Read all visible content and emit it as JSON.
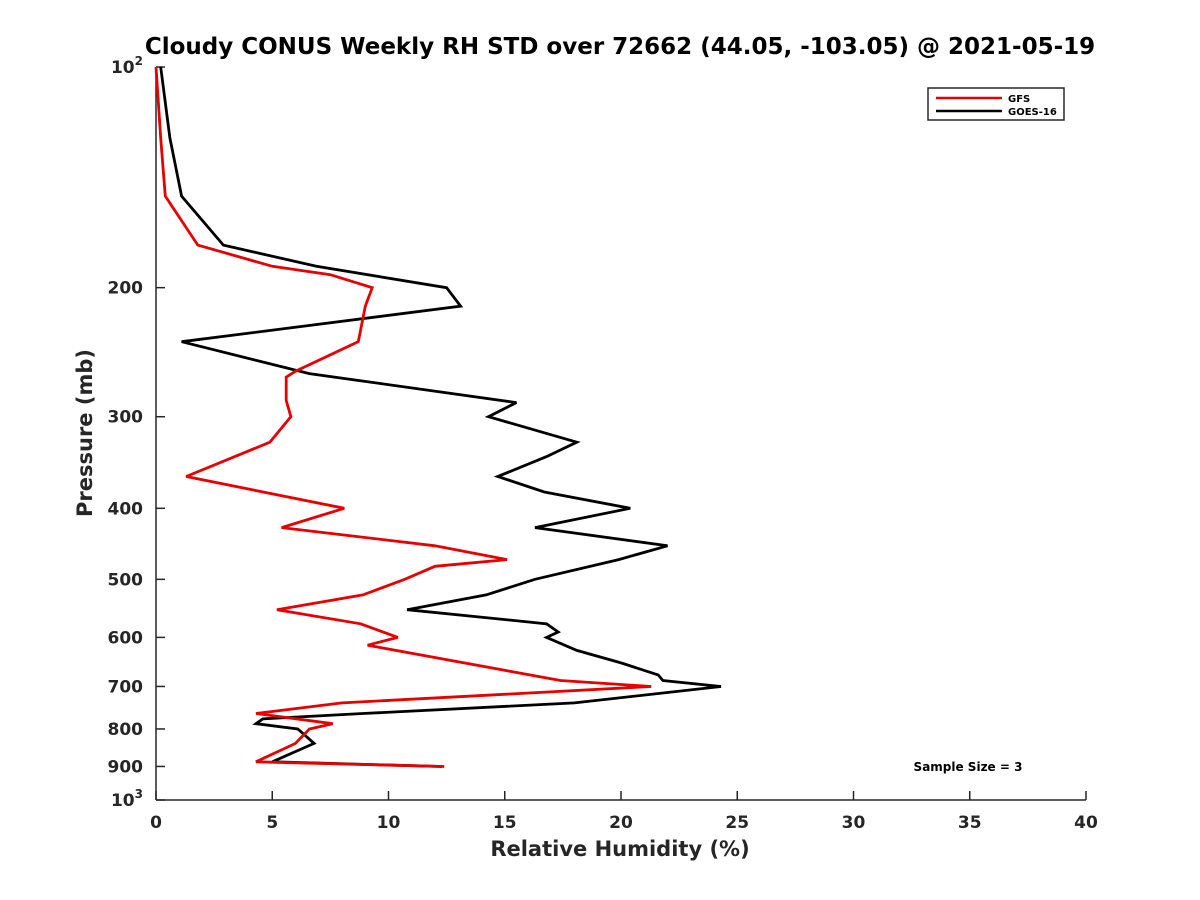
{
  "chart_data": {
    "type": "line",
    "title": "Cloudy CONUS Weekly RH STD over 72662 (44.05, -103.05) @ 2021-05-19",
    "xlabel": "Relative Humidity (%)",
    "ylabel": "Pressure (mb)",
    "xlim": [
      0,
      40
    ],
    "ylim": [
      100,
      1000
    ],
    "yscale": "log",
    "y_reversed": true,
    "x_ticks": [
      0,
      5,
      10,
      15,
      20,
      25,
      30,
      35,
      40
    ],
    "x_tick_labels": [
      "0",
      "5",
      "10",
      "15",
      "20",
      "25",
      "30",
      "35",
      "40"
    ],
    "y_ticks": [
      100,
      200,
      300,
      400,
      500,
      600,
      700,
      800,
      900,
      1000
    ],
    "y_tick_labels": [
      {
        "base": "10",
        "exp": "2"
      },
      {
        "base": "200",
        "exp": ""
      },
      {
        "base": "300",
        "exp": ""
      },
      {
        "base": "400",
        "exp": ""
      },
      {
        "base": "500",
        "exp": ""
      },
      {
        "base": "600",
        "exp": ""
      },
      {
        "base": "700",
        "exp": ""
      },
      {
        "base": "800",
        "exp": ""
      },
      {
        "base": "900",
        "exp": ""
      },
      {
        "base": "10",
        "exp": "3"
      }
    ],
    "grid": false,
    "legend_position": "top-right",
    "annotation": "Sample Size = 3",
    "series": [
      {
        "name": "GFS",
        "color": "#e60000",
        "points": [
          [
            0,
            100
          ],
          [
            0.2,
            125
          ],
          [
            0.4,
            150
          ],
          [
            1.8,
            175
          ],
          [
            5.0,
            187
          ],
          [
            7.5,
            192
          ],
          [
            9.3,
            200
          ],
          [
            9.0,
            212
          ],
          [
            8.7,
            237
          ],
          [
            6.0,
            260
          ],
          [
            5.6,
            265
          ],
          [
            5.6,
            285
          ],
          [
            5.8,
            300
          ],
          [
            4.9,
            325
          ],
          [
            1.3,
            362
          ],
          [
            8.1,
            400
          ],
          [
            5.4,
            425
          ],
          [
            12.0,
            450
          ],
          [
            15.1,
            470
          ],
          [
            12.0,
            480
          ],
          [
            10.7,
            500
          ],
          [
            8.9,
            525
          ],
          [
            5.2,
            550
          ],
          [
            8.8,
            575
          ],
          [
            10.4,
            600
          ],
          [
            9.1,
            615
          ],
          [
            17.4,
            687
          ],
          [
            21.3,
            700
          ],
          [
            8.0,
            737
          ],
          [
            4.3,
            762
          ],
          [
            7.6,
            787
          ],
          [
            6.6,
            800
          ],
          [
            6.0,
            837
          ],
          [
            4.3,
            887
          ],
          [
            12.4,
            900
          ]
        ]
      },
      {
        "name": "GOES-16",
        "color": "#000000",
        "points": [
          [
            0.2,
            100
          ],
          [
            0.6,
            125
          ],
          [
            1.1,
            150
          ],
          [
            2.9,
            175
          ],
          [
            6.9,
            187
          ],
          [
            12.5,
            200
          ],
          [
            13.1,
            212
          ],
          [
            1.1,
            237
          ],
          [
            6.6,
            262
          ],
          [
            15.5,
            287
          ],
          [
            14.3,
            300
          ],
          [
            18.1,
            325
          ],
          [
            16.8,
            340
          ],
          [
            14.7,
            362
          ],
          [
            16.7,
            380
          ],
          [
            20.4,
            400
          ],
          [
            16.3,
            425
          ],
          [
            22.0,
            450
          ],
          [
            19.9,
            470
          ],
          [
            16.3,
            500
          ],
          [
            14.2,
            525
          ],
          [
            10.8,
            550
          ],
          [
            16.8,
            575
          ],
          [
            17.3,
            590
          ],
          [
            16.8,
            600
          ],
          [
            18.1,
            625
          ],
          [
            20.0,
            650
          ],
          [
            21.6,
            675
          ],
          [
            21.8,
            687
          ],
          [
            24.3,
            700
          ],
          [
            18.0,
            737
          ],
          [
            8.9,
            762
          ],
          [
            4.6,
            775
          ],
          [
            4.3,
            787
          ],
          [
            6.1,
            800
          ],
          [
            6.8,
            837
          ],
          [
            5.0,
            887
          ],
          [
            12.3,
            900
          ]
        ]
      }
    ]
  }
}
